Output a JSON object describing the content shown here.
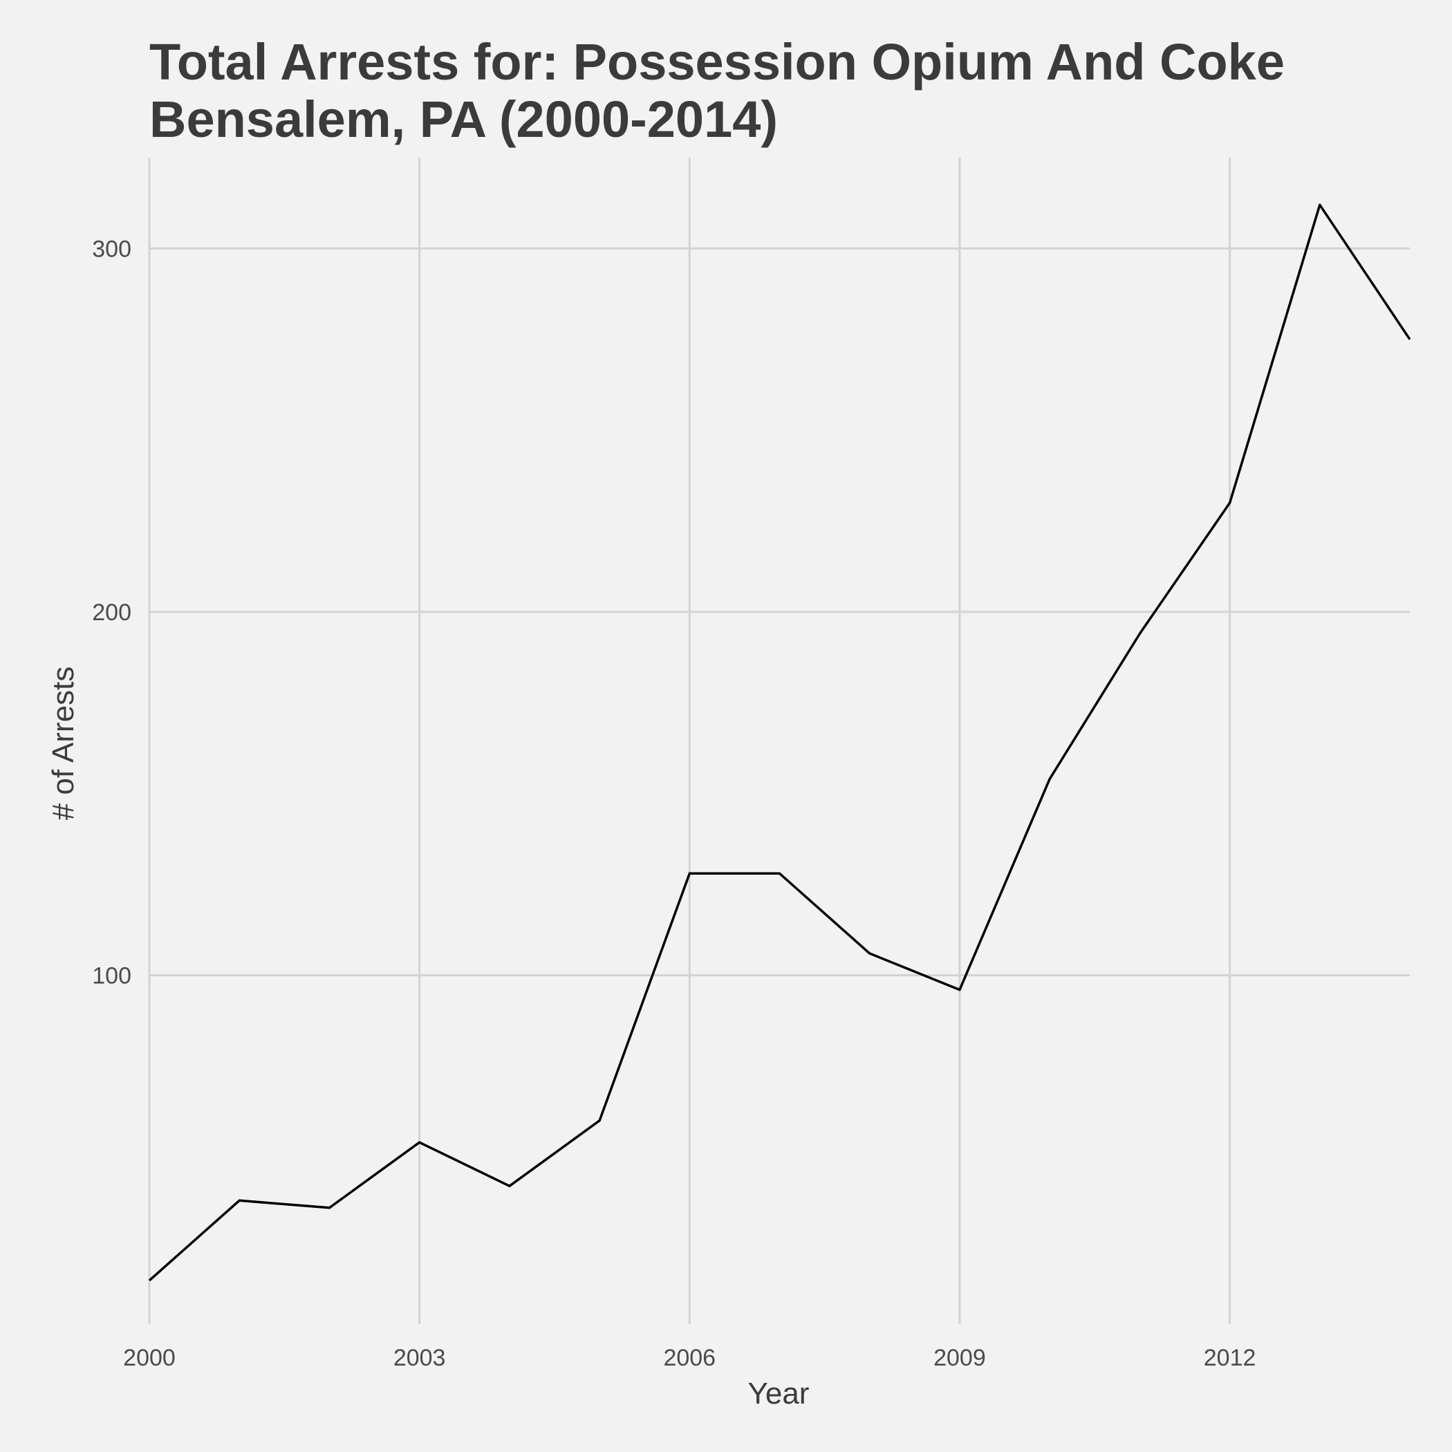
{
  "chart_data": {
    "type": "line",
    "title": "Total Arrests for: Possession Opium And  Coke",
    "subtitle": "Bensalem, PA (2000-2014)",
    "xlabel": "Year",
    "ylabel": "# of Arrests",
    "xlim": [
      2000,
      2014
    ],
    "ylim": [
      4,
      325
    ],
    "x_ticks": [
      2000,
      2003,
      2006,
      2009,
      2012
    ],
    "y_ticks": [
      100,
      200,
      300
    ],
    "grid": true,
    "colors": {
      "background": "#f2f2f2",
      "grid": "#d3d3d3",
      "line": "#000000",
      "text": "#3b3b3b"
    },
    "series": [
      {
        "name": "Arrests",
        "x": [
          2000,
          2001,
          2002,
          2003,
          2004,
          2005,
          2006,
          2007,
          2008,
          2009,
          2010,
          2011,
          2012,
          2013,
          2014
        ],
        "values": [
          16,
          38,
          36,
          54,
          42,
          60,
          128,
          128,
          106,
          96,
          154,
          194,
          230,
          312,
          275
        ]
      }
    ]
  }
}
